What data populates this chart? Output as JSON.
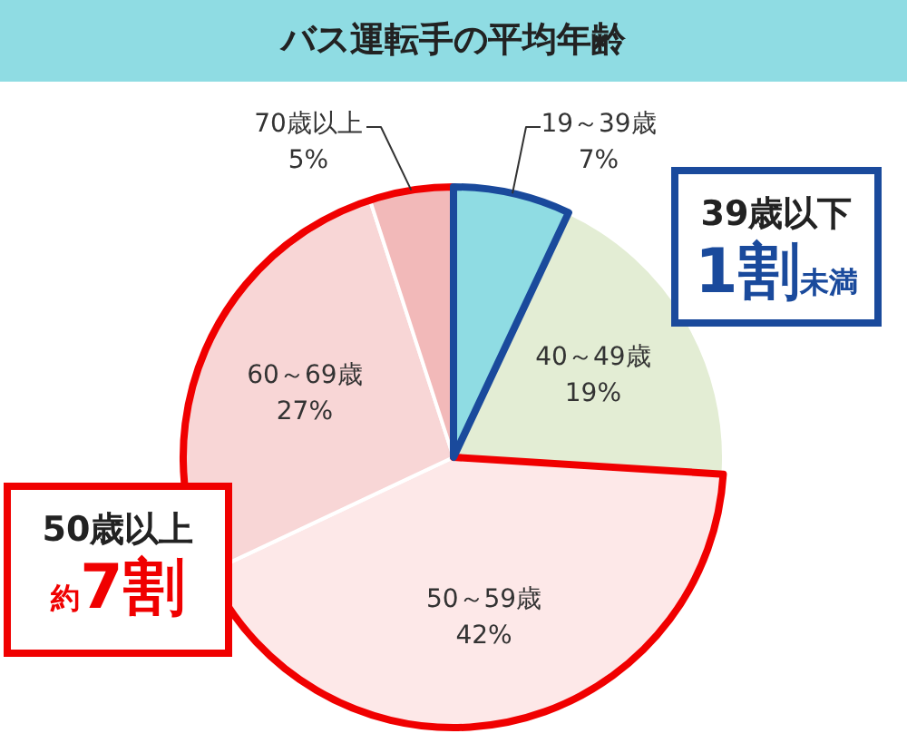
{
  "chart_data": {
    "type": "pie",
    "title": "バス運転手の平均年齢",
    "categories": [
      "19～39歳",
      "40～49歳",
      "50～59歳",
      "60～69歳",
      "70歳以上"
    ],
    "values": [
      7,
      19,
      42,
      27,
      5
    ],
    "value_labels": [
      "7%",
      "19%",
      "42%",
      "27%",
      "5%"
    ],
    "colors": [
      "#8fdce3",
      "#e3edd4",
      "#fde8e8",
      "#f8d6d6",
      "#f2b9b9"
    ],
    "legend": false,
    "annotations": [
      "39歳以下",
      "1割",
      "未満",
      "50歳以上",
      "約",
      "7割"
    ]
  }
}
